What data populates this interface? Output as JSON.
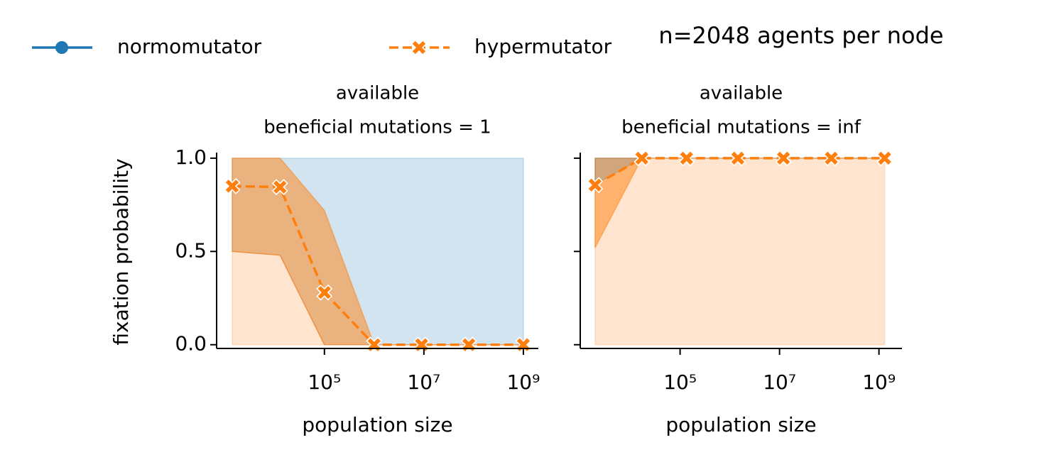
{
  "title": "n=2048 agents per node",
  "chart_data": [
    {
      "type": "line",
      "title": [
        "available",
        "beneficial mutations = 1"
      ],
      "xlabel": "population size",
      "ylabel": "fixation probability",
      "xscale": "log",
      "xlim": [
        680,
        2000000000
      ],
      "ylim": [
        -0.02,
        1.03
      ],
      "xticks": [
        {
          "value": 100000,
          "label": "10⁵"
        },
        {
          "value": 10000000,
          "label": "10⁷"
        },
        {
          "value": 1000000000,
          "label": "10⁹"
        }
      ],
      "yticks": [
        {
          "value": 0,
          "label": "0.0"
        },
        {
          "value": 0.5,
          "label": "0.5"
        },
        {
          "value": 1,
          "label": "1.0"
        }
      ],
      "x": [
        1400,
        12800,
        100000,
        1000000,
        9000000,
        80000000,
        1000000000
      ],
      "bands": [
        {
          "color": "#1f77b4",
          "opacity": 0.2,
          "lower": [
            0.5,
            0.48,
            0,
            0,
            0,
            0,
            0
          ],
          "upper": [
            1,
            1,
            1,
            1,
            1,
            1,
            1
          ]
        },
        {
          "color": "#ff7f0e",
          "opacity": 0.5,
          "lower": [
            0.5,
            0.48,
            0,
            0,
            0,
            0,
            0
          ],
          "upper": [
            1,
            1,
            0.72,
            0,
            0,
            0,
            0
          ]
        },
        {
          "color": "#ff7f0e",
          "opacity": 0.2,
          "lower": [
            0,
            0,
            0,
            0,
            0,
            0,
            0
          ],
          "upper": [
            0.5,
            0.48,
            0,
            0,
            0,
            0,
            0
          ]
        }
      ],
      "series": [
        {
          "name": "normomutator",
          "color": "#1f77b4",
          "marker": "circle",
          "linestyle": "solid",
          "values": [
            null,
            null,
            null,
            null,
            null,
            null,
            null
          ]
        },
        {
          "name": "hypermutator",
          "color": "#ff7f0e",
          "marker": "x",
          "linestyle": "dashed",
          "values": [
            0.85,
            0.845,
            0.28,
            0,
            0,
            0,
            0
          ]
        }
      ]
    },
    {
      "type": "line",
      "title": [
        "available",
        "beneficial mutations = inf"
      ],
      "xlabel": "population size",
      "xscale": "log",
      "xlim": [
        980,
        2900000000
      ],
      "ylim": [
        -0.02,
        1.03
      ],
      "xticks": [
        {
          "value": 100000,
          "label": "10⁵"
        },
        {
          "value": 10000000,
          "label": "10⁷"
        },
        {
          "value": 1000000000,
          "label": "10⁹"
        }
      ],
      "yticks": [
        0,
        0.5,
        1
      ],
      "x": [
        1950,
        17000,
        135000,
        1450000,
        12000000,
        110000000,
        1300000000
      ],
      "bands": [
        {
          "color": "#ff7f0e",
          "opacity": 0.2,
          "lower": [
            0,
            0,
            0,
            0,
            0,
            0,
            0
          ],
          "upper": [
            1,
            1,
            1,
            1,
            1,
            1,
            1
          ]
        },
        {
          "color": "#ff7f0e",
          "opacity": 0.5,
          "lower": [
            0.52,
            1,
            1,
            1,
            1,
            1,
            1
          ],
          "upper": [
            1,
            1,
            1,
            1,
            1,
            1,
            1
          ]
        },
        {
          "color": "#1f77b4",
          "opacity": 0.2,
          "lower": [
            0.86,
            1,
            1,
            1,
            1,
            1,
            1
          ],
          "upper": [
            1,
            1,
            1,
            1,
            1,
            1,
            1
          ]
        }
      ],
      "series": [
        {
          "name": "normomutator",
          "color": "#1f77b4",
          "marker": "circle",
          "linestyle": "solid",
          "values": [
            null,
            null,
            null,
            null,
            null,
            null,
            null
          ]
        },
        {
          "name": "hypermutator",
          "color": "#ff7f0e",
          "marker": "x",
          "linestyle": "dashed",
          "values": [
            0.856,
            1,
            1,
            1,
            1,
            1,
            1
          ]
        }
      ]
    }
  ]
}
